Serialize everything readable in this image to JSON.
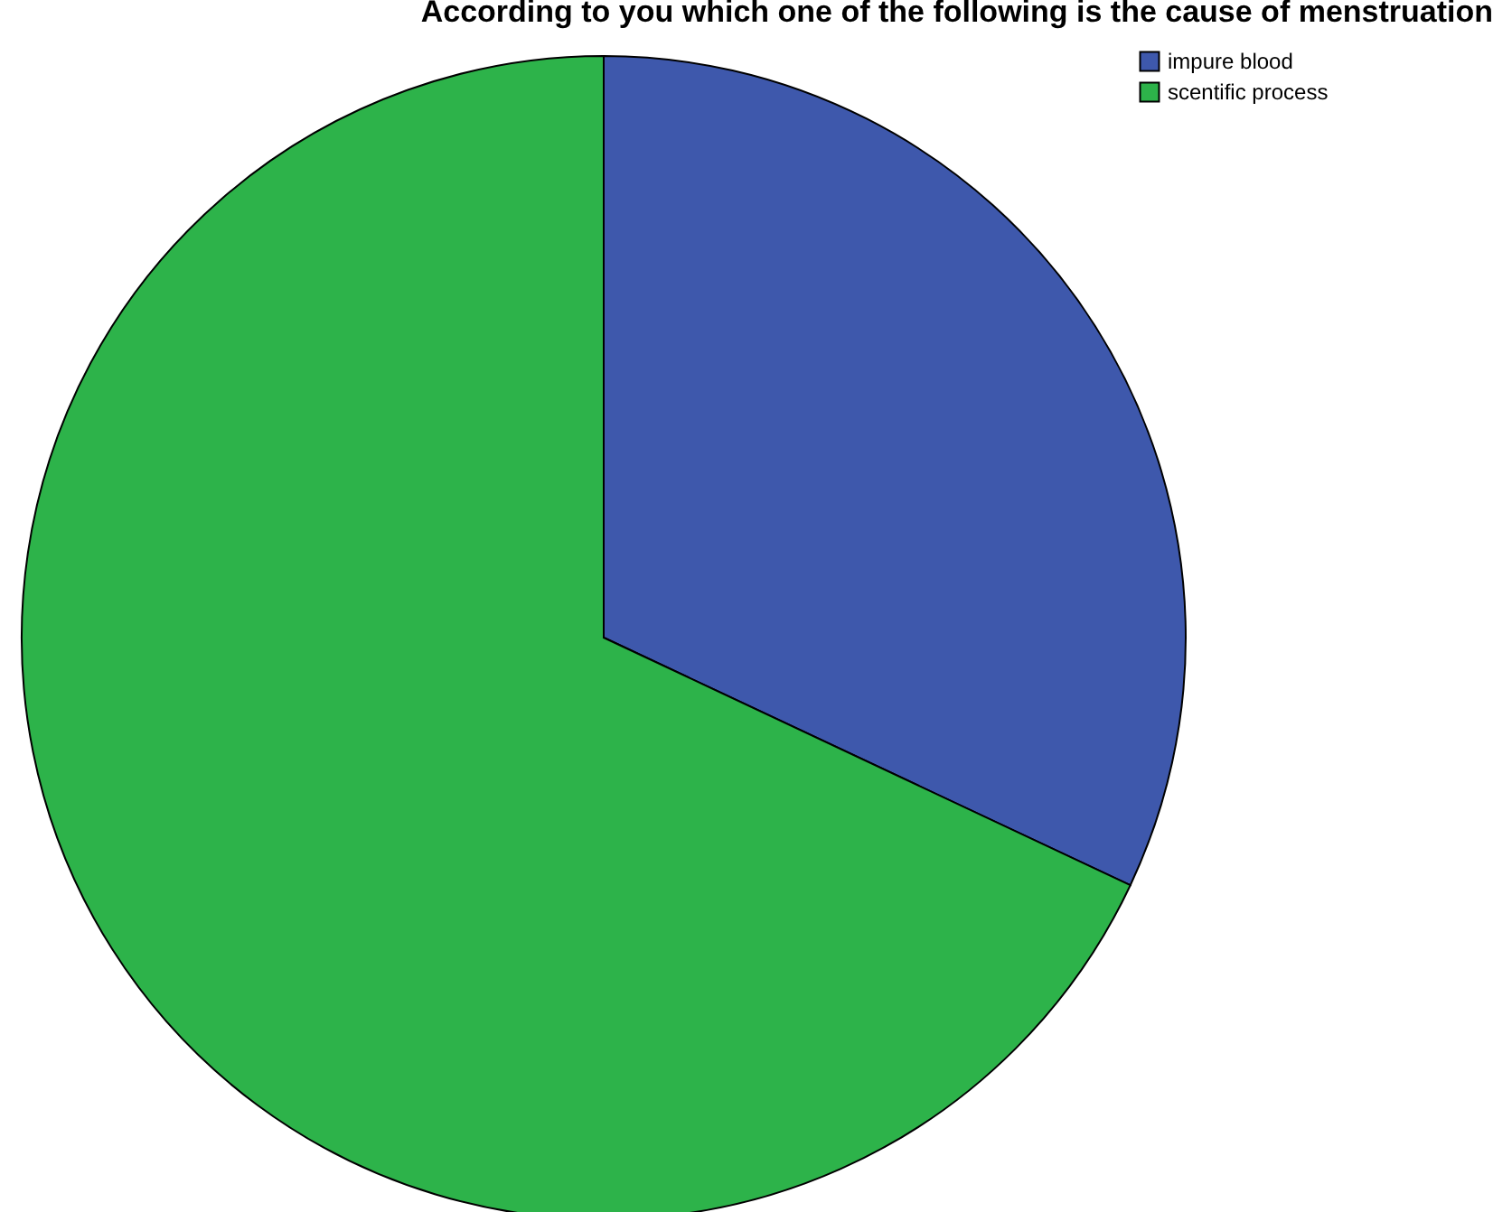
{
  "chart_data": {
    "type": "pie",
    "title": "According to you which one of the following is the cause of menstruation",
    "categories": [
      "impure blood",
      "scentific process"
    ],
    "values": [
      32,
      68
    ],
    "colors": [
      "#3e58ac",
      "#2db34a"
    ],
    "legend": "top right"
  }
}
